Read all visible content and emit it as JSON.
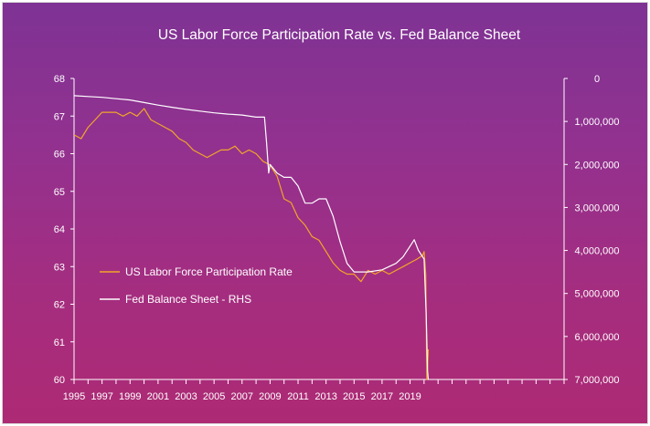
{
  "chart_data": {
    "type": "line",
    "title": "US Labor Force Participation Rate vs. Fed Balance Sheet",
    "x_ticks": [
      "1995",
      "1997",
      "1999",
      "2001",
      "2003",
      "2005",
      "2007",
      "2009",
      "2011",
      "2013",
      "2015",
      "2017",
      "2019"
    ],
    "x_range": [
      1995,
      2030
    ],
    "y_left": {
      "range": [
        60,
        68
      ],
      "ticks": [
        "60",
        "61",
        "62",
        "63",
        "64",
        "65",
        "66",
        "67",
        "68"
      ]
    },
    "y_right": {
      "range": [
        0,
        7000000
      ],
      "inverted": true,
      "ticks": [
        "0",
        "1,000,000",
        "2,000,000",
        "3,000,000",
        "4,000,000",
        "5,000,000",
        "6,000,000",
        "7,000,000"
      ]
    },
    "legend_position": "left-center",
    "series": [
      {
        "name": "US Labor Force Participation Rate",
        "axis": "left",
        "color": "#f2a628",
        "x": [
          1995.0,
          1995.5,
          1996.0,
          1996.5,
          1997.0,
          1997.5,
          1998.0,
          1998.5,
          1999.0,
          1999.5,
          2000.0,
          2000.5,
          2001.0,
          2001.5,
          2002.0,
          2002.5,
          2003.0,
          2003.5,
          2004.0,
          2004.5,
          2005.0,
          2005.5,
          2006.0,
          2006.5,
          2007.0,
          2007.5,
          2008.0,
          2008.5,
          2009.0,
          2009.5,
          2010.0,
          2010.5,
          2011.0,
          2011.5,
          2012.0,
          2012.5,
          2013.0,
          2013.5,
          2014.0,
          2014.5,
          2015.0,
          2015.5,
          2016.0,
          2016.5,
          2017.0,
          2017.5,
          2018.0,
          2018.5,
          2019.0,
          2019.5,
          2019.9,
          2020.0,
          2020.12,
          2020.2,
          2020.25,
          2020.3
        ],
        "values": [
          66.5,
          66.4,
          66.7,
          66.9,
          67.1,
          67.1,
          67.1,
          67.0,
          67.1,
          67.0,
          67.2,
          66.9,
          66.8,
          66.7,
          66.6,
          66.4,
          66.3,
          66.1,
          66.0,
          65.9,
          66.0,
          66.1,
          66.1,
          66.2,
          66.0,
          66.1,
          66.0,
          65.8,
          65.7,
          65.4,
          64.8,
          64.7,
          64.3,
          64.1,
          63.8,
          63.7,
          63.4,
          63.1,
          62.9,
          62.8,
          62.8,
          62.6,
          62.9,
          62.8,
          62.9,
          62.8,
          62.9,
          63.0,
          63.1,
          63.2,
          63.3,
          63.4,
          62.8,
          60.0,
          60.4,
          60.8
        ]
      },
      {
        "name": "Fed Balance Sheet - RHS",
        "axis": "right",
        "color": "#ffffff",
        "x": [
          1995.0,
          1996.0,
          1997.0,
          1998.0,
          1999.0,
          2000.0,
          2001.0,
          2002.0,
          2003.0,
          2004.0,
          2005.0,
          2006.0,
          2007.0,
          2008.0,
          2008.6,
          2008.75,
          2008.9,
          2009.0,
          2009.5,
          2010.0,
          2010.5,
          2011.0,
          2011.5,
          2012.0,
          2012.5,
          2013.0,
          2013.5,
          2014.0,
          2014.5,
          2015.0,
          2016.0,
          2017.0,
          2018.0,
          2018.5,
          2019.0,
          2019.3,
          2019.6,
          2019.9,
          2020.0,
          2020.15,
          2020.25,
          2020.3
        ],
        "values": [
          400000,
          420000,
          440000,
          470000,
          500000,
          560000,
          620000,
          670000,
          720000,
          760000,
          800000,
          830000,
          850000,
          900000,
          900000,
          1500000,
          2200000,
          2000000,
          2200000,
          2300000,
          2300000,
          2500000,
          2900000,
          2900000,
          2800000,
          2800000,
          3200000,
          3800000,
          4300000,
          4500000,
          4500000,
          4450000,
          4300000,
          4150000,
          3900000,
          3750000,
          4000000,
          4150000,
          4200000,
          5500000,
          6800000,
          7000000
        ]
      }
    ]
  }
}
